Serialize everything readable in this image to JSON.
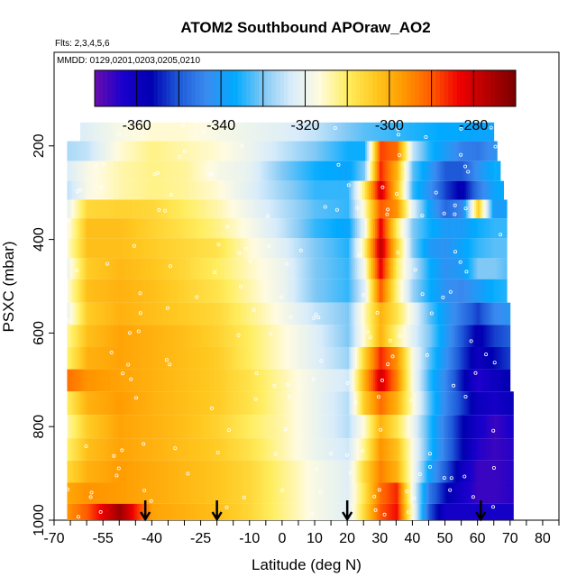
{
  "chart_data": {
    "type": "heatmap",
    "title": "ATOM2 Southbound APOraw_AO2",
    "flights_note": "Flts: 2,3,4,5,6",
    "dates_note": "MMDD: 0129,0201,0203,0205,0210",
    "xlabel": "Latitude (deg N)",
    "ylabel": "PSXC (mbar)",
    "xlim": [
      -70,
      85
    ],
    "ylim": [
      1000,
      0
    ],
    "x_major_ticks": [
      -70,
      -55,
      -40,
      -25,
      -10,
      0,
      10,
      20,
      30,
      40,
      50,
      60,
      70,
      80
    ],
    "x_minor_ticks": [
      -65,
      -60,
      -50,
      -45,
      -35,
      -30,
      -20,
      -15,
      -5,
      5,
      15,
      25,
      35,
      45,
      55,
      65,
      75,
      85
    ],
    "y_ticks": [
      200,
      400,
      600,
      800,
      1000
    ],
    "colorbar": {
      "range": [
        -370,
        -270
      ],
      "tick_values": [
        -360,
        -340,
        -320,
        -300,
        -280
      ],
      "tick_labels": [
        "-360",
        "-340",
        "-320",
        "-300",
        "-280"
      ],
      "palette": [
        "#6a0dad",
        "#1a00cc",
        "#0000b0",
        "#1e5ad8",
        "#3a8cf0",
        "#00aaff",
        "#80c8f5",
        "#d8ecfa",
        "#fffbe0",
        "#ffee60",
        "#ffc820",
        "#ff9a00",
        "#ff5a00",
        "#f00000",
        "#b40000",
        "#7a0000"
      ]
    },
    "arrow_latitudes": [
      -42,
      -20,
      20,
      61
    ],
    "pressure_levels": [
      170,
      210,
      255,
      295,
      335,
      375,
      420,
      460,
      510,
      560,
      605,
      655,
      700,
      750,
      800,
      850,
      895,
      945,
      985
    ],
    "latitude_nodes": [
      -70,
      -60,
      -50,
      -40,
      -30,
      -20,
      -10,
      0,
      10,
      20,
      25,
      30,
      35,
      40,
      45,
      50,
      55,
      60,
      65,
      72
    ],
    "values": [
      [
        -325,
        -322,
        -318,
        -316,
        -316,
        -318,
        -320,
        -322,
        -325,
        -330,
        -332,
        -333,
        -334,
        -335,
        -336,
        -337,
        -337,
        -338,
        -338,
        -338
      ],
      [
        -328,
        -325,
        -316,
        -312,
        -314,
        -316,
        -320,
        -325,
        -330,
        -336,
        -336,
        -288,
        -292,
        -325,
        -335,
        -340,
        -345,
        -346,
        -342,
        -340
      ],
      [
        -326,
        -318,
        -314,
        -312,
        -313,
        -318,
        -321,
        -330,
        -336,
        -338,
        -330,
        -286,
        -300,
        -332,
        -340,
        -350,
        -350,
        -342,
        -336,
        -338
      ],
      [
        -330,
        -318,
        -314,
        -312,
        -313,
        -316,
        -322,
        -328,
        -334,
        -334,
        -310,
        -280,
        -302,
        -334,
        -342,
        -352,
        -358,
        -346,
        -338,
        -334
      ],
      [
        -330,
        -306,
        -305,
        -306,
        -310,
        -314,
        -320,
        -326,
        -332,
        -334,
        -315,
        -290,
        -296,
        -322,
        -338,
        -348,
        -344,
        -304,
        -340,
        -338
      ],
      [
        -328,
        -302,
        -302,
        -305,
        -308,
        -312,
        -318,
        -325,
        -334,
        -338,
        -320,
        -282,
        -310,
        -330,
        -336,
        -340,
        -340,
        -336,
        -334,
        -334
      ],
      [
        -325,
        -302,
        -302,
        -304,
        -306,
        -308,
        -316,
        -322,
        -330,
        -335,
        -312,
        -278,
        -305,
        -330,
        -340,
        -342,
        -338,
        -334,
        -332,
        -332
      ],
      [
        -330,
        -304,
        -301,
        -303,
        -306,
        -310,
        -315,
        -320,
        -330,
        -334,
        -318,
        -282,
        -310,
        -325,
        -336,
        -342,
        -340,
        -330,
        -330,
        -334
      ],
      [
        -326,
        -302,
        -300,
        -302,
        -305,
        -308,
        -314,
        -320,
        -330,
        -334,
        -322,
        -290,
        -312,
        -328,
        -336,
        -342,
        -344,
        -340,
        -336,
        -334
      ],
      [
        -330,
        -304,
        -300,
        -302,
        -304,
        -306,
        -312,
        -318,
        -325,
        -330,
        -315,
        -300,
        -308,
        -320,
        -332,
        -340,
        -346,
        -352,
        -344,
        -340
      ],
      [
        -320,
        -302,
        -298,
        -300,
        -302,
        -305,
        -310,
        -316,
        -322,
        -330,
        -316,
        -300,
        -312,
        -322,
        -330,
        -340,
        -350,
        -358,
        -352,
        -348
      ],
      [
        -318,
        -300,
        -298,
        -300,
        -302,
        -304,
        -310,
        -316,
        -322,
        -328,
        -305,
        -286,
        -296,
        -318,
        -332,
        -342,
        -352,
        -360,
        -356,
        -350
      ],
      [
        -290,
        -296,
        -298,
        -300,
        -302,
        -304,
        -308,
        -314,
        -320,
        -324,
        -300,
        -280,
        -294,
        -318,
        -334,
        -344,
        -355,
        -364,
        -360,
        -356
      ],
      [
        -316,
        -300,
        -297,
        -300,
        -302,
        -304,
        -308,
        -314,
        -320,
        -326,
        -304,
        -292,
        -300,
        -316,
        -332,
        -344,
        -352,
        -360,
        -362,
        -358
      ],
      [
        -320,
        -304,
        -298,
        -300,
        -302,
        -305,
        -310,
        -314,
        -320,
        -326,
        -316,
        -300,
        -308,
        -320,
        -334,
        -346,
        -356,
        -362,
        -366,
        -362
      ],
      [
        -316,
        -302,
        -298,
        -300,
        -302,
        -304,
        -308,
        -314,
        -320,
        -324,
        -312,
        -296,
        -302,
        -318,
        -334,
        -346,
        -356,
        -364,
        -366,
        -364
      ],
      [
        -310,
        -300,
        -297,
        -299,
        -301,
        -303,
        -306,
        -312,
        -318,
        -322,
        -306,
        -294,
        -300,
        -318,
        -338,
        -350,
        -360,
        -366,
        -366,
        -364
      ],
      [
        -300,
        -296,
        -297,
        -299,
        -301,
        -303,
        -306,
        -312,
        -318,
        -322,
        -308,
        -292,
        -286,
        -320,
        -346,
        -356,
        -362,
        -366,
        -366,
        -364
      ],
      [
        -300,
        -290,
        -274,
        -298,
        -300,
        -302,
        -306,
        -312,
        -318,
        -322,
        -306,
        -290,
        -284,
        -318,
        -350,
        -362,
        -362,
        -362,
        -362,
        -362
      ]
    ]
  }
}
